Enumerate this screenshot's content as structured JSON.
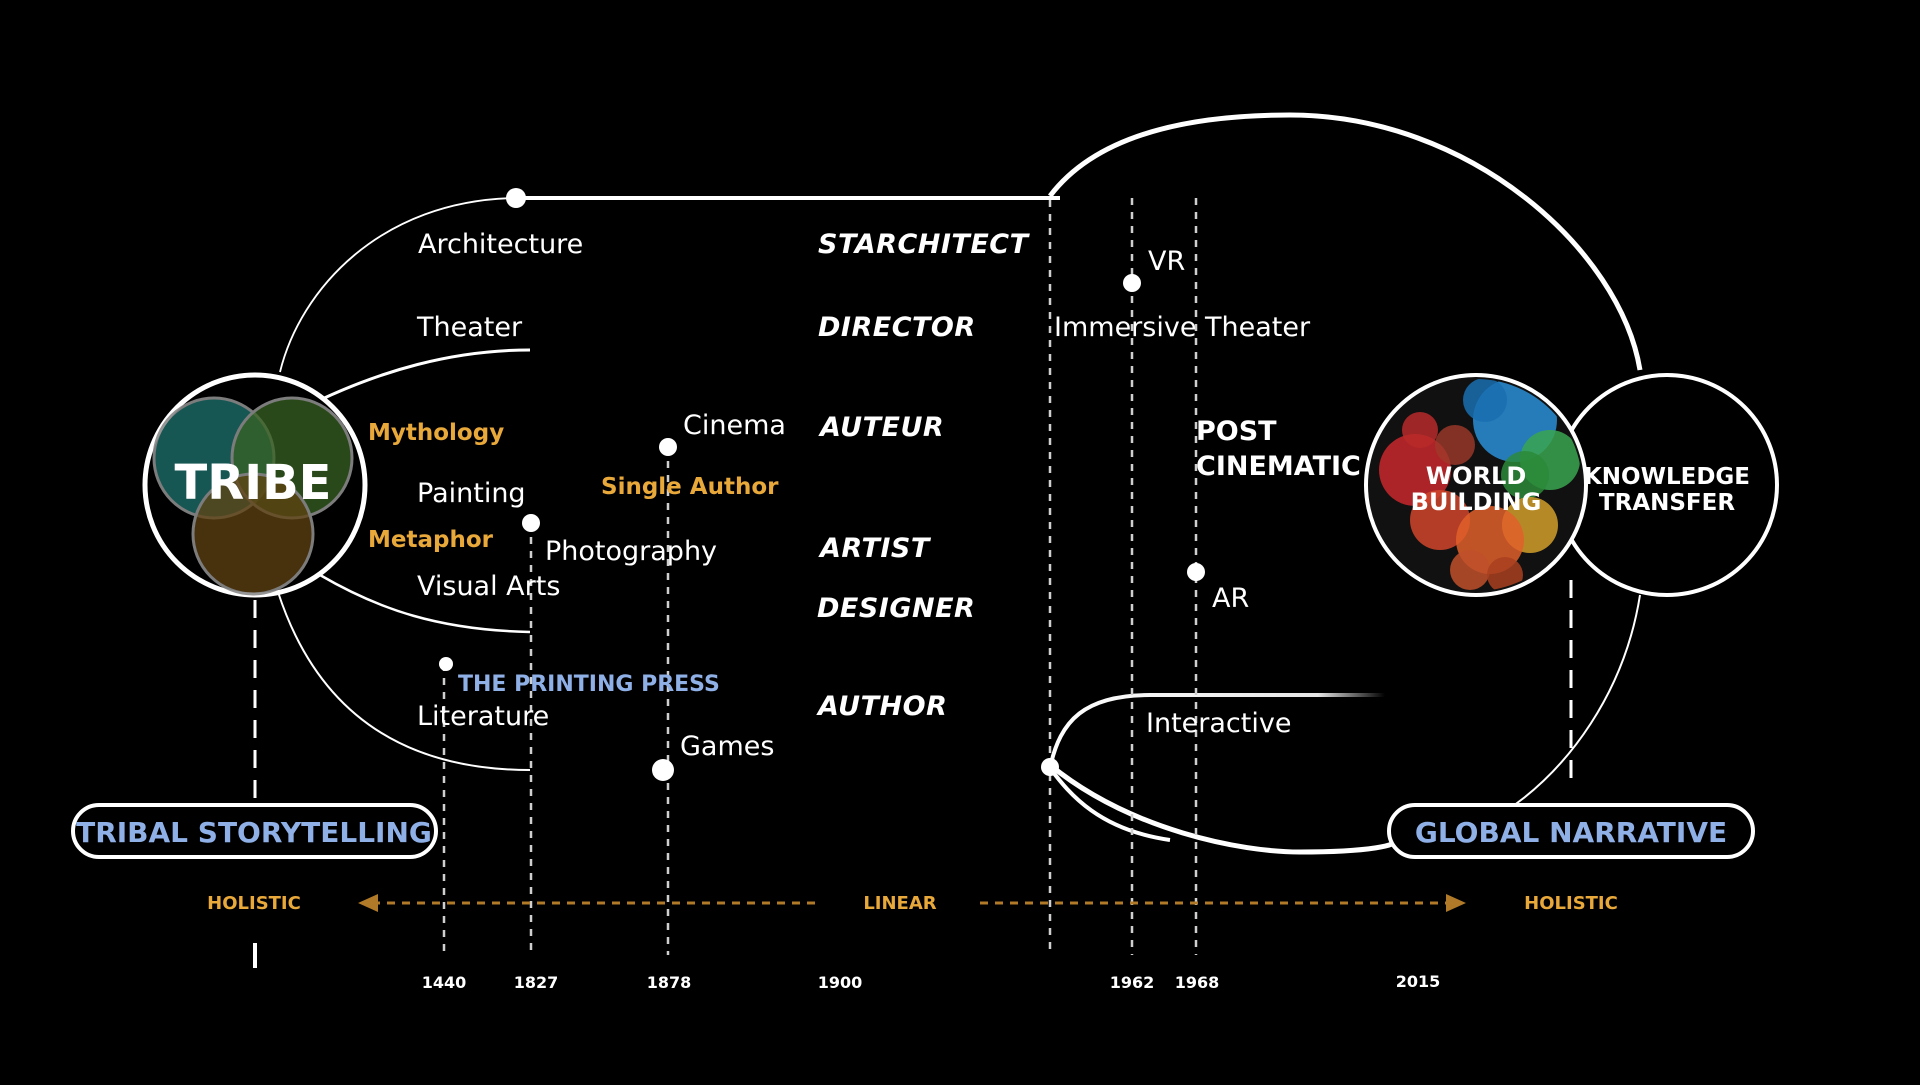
{
  "colors": {
    "background": "#000000",
    "line": "#ffffff",
    "accent_orange": "#e8a83a",
    "accent_blue": "#8fb0e6"
  },
  "tribe": {
    "label": "TRIBE",
    "venn_colors": [
      "#1c6a66",
      "#3f6e27",
      "#6b4a14"
    ]
  },
  "tribe_side_labels": {
    "mythology": "Mythology",
    "metaphor": "Metaphor"
  },
  "world": {
    "label_line1": "WORLD",
    "label_line2": "BUILDING"
  },
  "knowledge": {
    "label_line1": "KNOWLEDGE",
    "label_line2": "TRANSFER"
  },
  "media": {
    "architecture": "Architecture",
    "theater": "Theater",
    "cinema": "Cinema",
    "painting": "Painting",
    "photography": "Photography",
    "visual_arts": "Visual Arts",
    "literature": "Literature",
    "games": "Games",
    "vr": "VR",
    "immersive_theater": "Immersive Theater",
    "ar": "AR",
    "interactive": "Interactive",
    "post_line1": "POST",
    "post_line2": "CINEMATIC"
  },
  "roles": {
    "starchitect": "STARCHITECT",
    "director": "DIRECTOR",
    "auteur": "AUTEUR",
    "artist": "ARTIST",
    "designer": "DESIGNER",
    "author": "AUTHOR"
  },
  "single_author": "Single Author",
  "printing_press": "THE PRINTING PRESS",
  "boxes": {
    "tribal": "TRIBAL STORYTELLING",
    "global": "GLOBAL NARRATIVE"
  },
  "scale": {
    "left": "HOLISTIC",
    "center": "LINEAR",
    "right": "HOLISTIC"
  },
  "years": [
    "1440",
    "1827",
    "1878",
    "1900",
    "1962",
    "1968",
    "2015"
  ]
}
